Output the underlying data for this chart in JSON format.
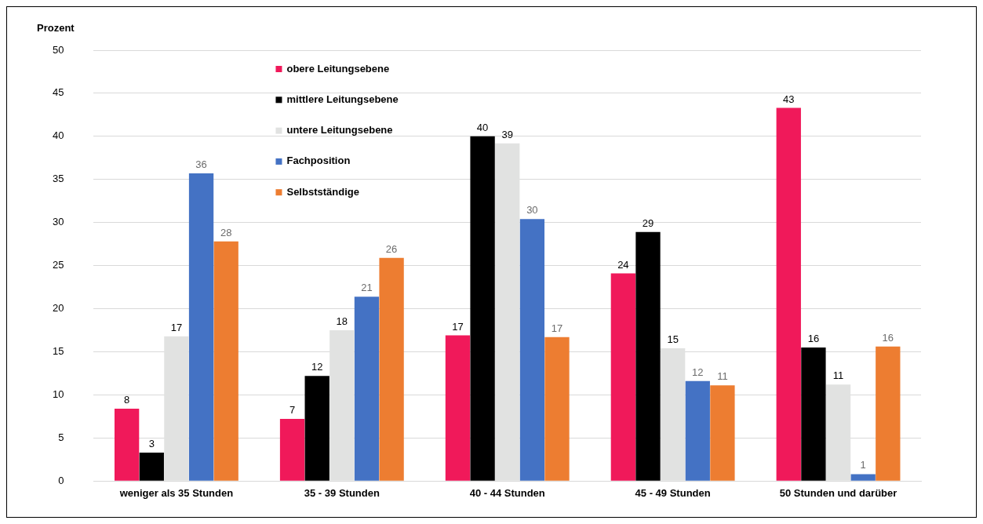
{
  "chart_data": {
    "type": "bar",
    "ylabel": "Prozent",
    "categories": [
      "weniger als 35 Stunden",
      "35 - 39 Stunden",
      "40 - 44 Stunden",
      "45 - 49 Stunden",
      "50 Stunden und darüber"
    ],
    "series": [
      {
        "name": "obere Leitungsebene",
        "color": "#f0195a",
        "values": [
          8.4,
          7.2,
          16.9,
          24.1,
          43.3
        ],
        "value_labels": [
          "8",
          "7",
          "17",
          "24",
          "43"
        ]
      },
      {
        "name": "mittlere Leitungsebene",
        "color": "#000000",
        "values": [
          3.3,
          12.2,
          40.0,
          28.9,
          15.5
        ],
        "value_labels": [
          "3",
          "12",
          "40",
          "29",
          "16"
        ]
      },
      {
        "name": "untere Leitungsebene",
        "color": "#e1e2e1",
        "values": [
          16.8,
          17.5,
          39.2,
          15.4,
          11.2
        ],
        "value_labels": [
          "17",
          "18",
          "39",
          "15",
          "11"
        ]
      },
      {
        "name": "Fachposition",
        "color": "#4472c4",
        "values": [
          35.7,
          21.4,
          30.4,
          11.6,
          0.8
        ],
        "value_labels": [
          "36",
          "21",
          "30",
          "12",
          "1"
        ]
      },
      {
        "name": "Selbstständige",
        "color": "#ed7d31",
        "values": [
          27.8,
          25.9,
          16.7,
          11.1,
          15.6
        ],
        "value_labels": [
          "28",
          "26",
          "17",
          "11",
          "16"
        ]
      }
    ],
    "ylim": [
      0,
      50
    ],
    "yticks": [
      0,
      5,
      10,
      15,
      20,
      25,
      30,
      35,
      40,
      45,
      50
    ],
    "grid": "y",
    "legend": "top left"
  }
}
